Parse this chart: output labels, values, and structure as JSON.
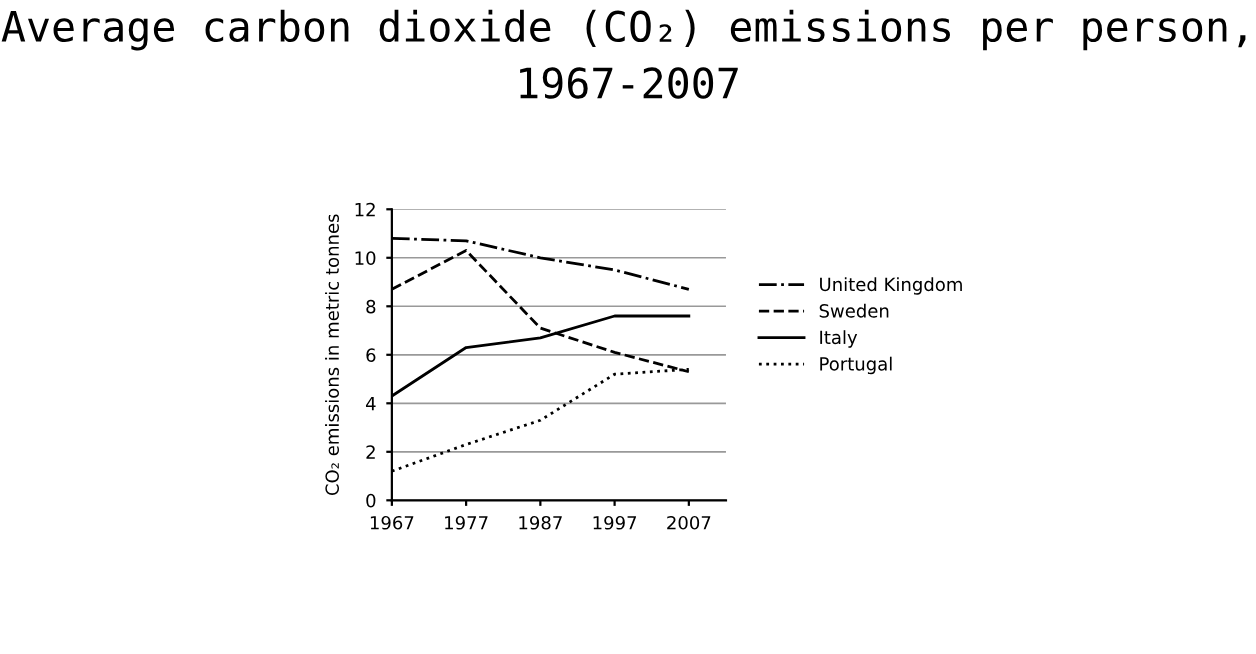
{
  "chart_data": {
    "type": "line",
    "title": "Average carbon dioxide (CO₂) emissions per person, 1967-2007",
    "ylabel": "CO₂ emissions in metric tonnes",
    "x": [
      1967,
      1977,
      1987,
      1997,
      2007
    ],
    "series": [
      {
        "name": "United Kingdom",
        "color": "#000000",
        "line_style": "dashdot",
        "values": [
          10.8,
          10.7,
          10.0,
          9.5,
          8.7
        ]
      },
      {
        "name": "Sweden",
        "color": "#000000",
        "line_style": "dashed",
        "values": [
          8.7,
          10.3,
          7.1,
          6.1,
          5.3
        ]
      },
      {
        "name": "Italy",
        "color": "#000000",
        "line_style": "solid",
        "values": [
          4.3,
          6.3,
          6.7,
          7.6,
          7.6
        ]
      },
      {
        "name": "Portugal",
        "color": "#000000",
        "line_style": "dotted",
        "values": [
          1.2,
          2.3,
          3.3,
          5.2,
          5.4
        ]
      }
    ],
    "xlim": [
      1967,
      2012
    ],
    "xticks": [
      1967,
      1977,
      1987,
      1997,
      2007
    ],
    "ylim": [
      0,
      12
    ],
    "yticks": [
      0,
      2,
      4,
      6,
      8,
      10,
      12
    ],
    "grid": "y",
    "legend": "right",
    "marker": "none"
  }
}
